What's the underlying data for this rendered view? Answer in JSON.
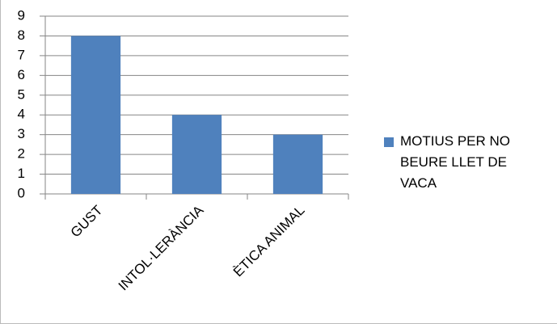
{
  "chart_data": {
    "type": "bar",
    "categories": [
      "GUST",
      "INTOL·LERÀNCIA",
      "ÈTICA ANIMAL"
    ],
    "series": [
      {
        "name": "MOTIUS PER NO BEURE LLET DE VACA",
        "color": "#4f81bd",
        "values": [
          8,
          4,
          3
        ]
      }
    ],
    "ylim": [
      0,
      9
    ],
    "yticks": [
      0,
      1,
      2,
      3,
      4,
      5,
      6,
      7,
      8,
      9
    ],
    "grid": true,
    "legend": "right"
  }
}
